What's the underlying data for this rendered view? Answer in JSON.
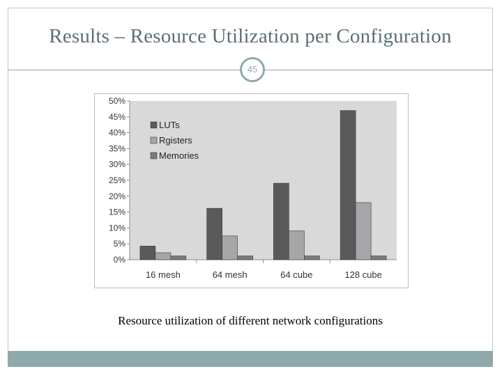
{
  "slide": {
    "title": "Results – Resource Utilization per Configuration",
    "page_number": "45",
    "caption": "Resource utilization of different network configurations"
  },
  "colors": {
    "plot_background": "#d9d9d9",
    "accent": "#8fa9ab",
    "series": [
      "#5a5a5c",
      "#a6a6a8",
      "#7b7b7d"
    ]
  },
  "chart_data": {
    "type": "bar",
    "title": "",
    "xlabel": "",
    "ylabel": "",
    "categories": [
      "16 mesh",
      "64 mesh",
      "64 cube",
      "128 cube"
    ],
    "series": [
      {
        "name": "LUTs",
        "values": [
          4.3,
          16.2,
          24.1,
          47.0
        ]
      },
      {
        "name": "Rgisters",
        "values": [
          2.2,
          7.5,
          9.1,
          18.0
        ]
      },
      {
        "name": "Memories",
        "values": [
          1.2,
          1.2,
          1.2,
          1.2
        ]
      }
    ],
    "ylim": [
      0,
      50
    ],
    "yticks": [
      "0%",
      "5%",
      "10%",
      "15%",
      "20%",
      "25%",
      "30%",
      "35%",
      "40%",
      "45%",
      "50%"
    ],
    "grid": false,
    "legend_position": "top-left"
  }
}
